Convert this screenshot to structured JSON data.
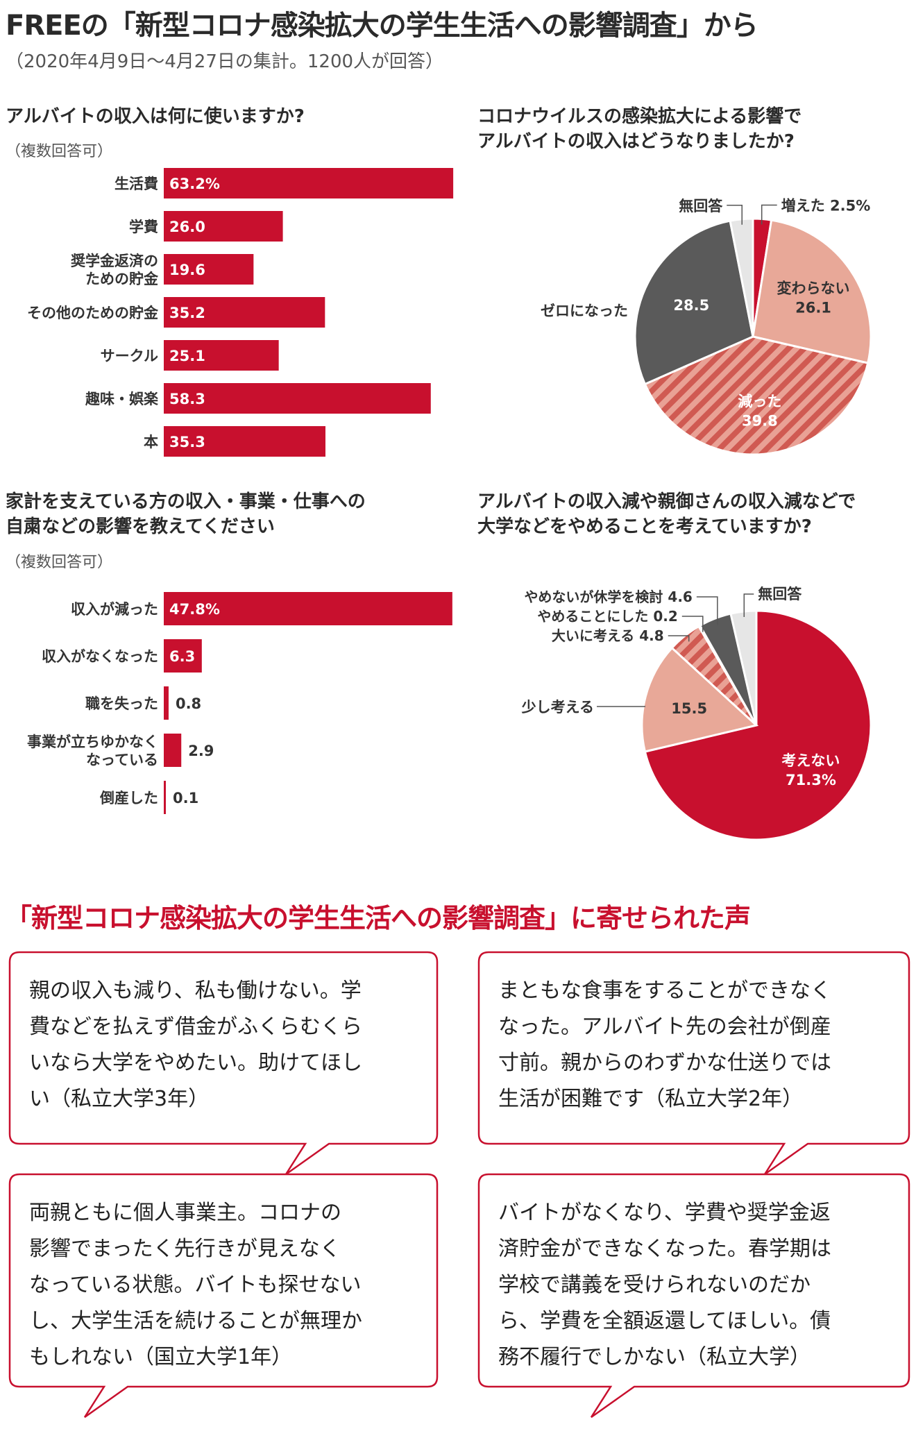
{
  "header": {
    "title": "FREEの「新型コロナ感染拡大の学生生活への影響調査」から",
    "subtitle": "（2020年4月9日〜4月27日の集計。1200人が回答）"
  },
  "colors": {
    "accent": "#c8102e",
    "salmon": "#e8a898",
    "dark": "#5a5a5a",
    "light": "#e6e6e6"
  },
  "chart_data": [
    {
      "type": "bar",
      "title": "アルバイトの収入は何に使いますか?",
      "note": "（複数回答可）",
      "unit": "%",
      "categories": [
        "生活費",
        "学費",
        "奨学金返済のための貯金",
        "その他のための貯金",
        "サークル",
        "趣味・娯楽",
        "本"
      ],
      "category_lines": [
        [
          "生活費"
        ],
        [
          "学費"
        ],
        [
          "奨学金返済の",
          "ための貯金"
        ],
        [
          "その他のための貯金"
        ],
        [
          "サークル"
        ],
        [
          "趣味・娯楽"
        ],
        [
          "本"
        ]
      ],
      "values": [
        63.2,
        26.0,
        19.6,
        35.2,
        25.1,
        58.3,
        35.3
      ],
      "labels": [
        "63.2%",
        "26.0",
        "19.6",
        "35.2",
        "25.1",
        "58.3",
        "35.3"
      ]
    },
    {
      "type": "pie",
      "title_lines": [
        "コロナウイルスの感染拡大による影響で",
        "アルバイトの収入はどうなりましたか?"
      ],
      "slices": [
        {
          "label": "増えた",
          "value": 2.5,
          "text": "2.5%"
        },
        {
          "label": "変わらない",
          "value": 26.1,
          "text": "26.1"
        },
        {
          "label": "減った",
          "value": 39.8,
          "text": "39.8"
        },
        {
          "label": "ゼロになった",
          "value": 28.5,
          "text": "28.5"
        },
        {
          "label": "無回答",
          "value": 3.1,
          "text": ""
        }
      ]
    },
    {
      "type": "bar",
      "title_lines": [
        "家計を支えている方の収入・事業・仕事への",
        "自粛などの影響を教えてください"
      ],
      "note": "（複数回答可）",
      "unit": "%",
      "categories": [
        "収入が減った",
        "収入がなくなった",
        "職を失った",
        "事業が立ちゆかくなっている",
        "倒産した"
      ],
      "category_lines": [
        [
          "収入が減った"
        ],
        [
          "収入がなくなった"
        ],
        [
          "職を失った"
        ],
        [
          "事業が立ちゆかなく",
          "なっている"
        ],
        [
          "倒産した"
        ]
      ],
      "values": [
        47.8,
        6.3,
        0.8,
        2.9,
        0.1
      ],
      "labels": [
        "47.8%",
        "6.3",
        "0.8",
        "2.9",
        "0.1"
      ]
    },
    {
      "type": "pie",
      "title_lines": [
        "アルバイトの収入減や親御さんの収入減などで",
        "大学などをやめることを考えていますか?"
      ],
      "slices": [
        {
          "label": "考えない",
          "value": 71.3,
          "text": "71.3%"
        },
        {
          "label": "少し考える",
          "value": 15.5,
          "text": "15.5"
        },
        {
          "label": "大いに考える",
          "value": 4.8,
          "text": "4.8"
        },
        {
          "label": "やめることにした",
          "value": 0.2,
          "text": "0.2"
        },
        {
          "label": "やめないが休学を検討",
          "value": 4.6,
          "text": "4.6"
        },
        {
          "label": "無回答",
          "value": 3.6,
          "text": ""
        }
      ]
    }
  ],
  "voices": {
    "title": "「新型コロナ感染拡大の学生生活への影響調査」に寄せられた声",
    "quotes": [
      [
        "親の収入も減り、私も働けない。学",
        "費などを払えず借金がふくらむくら",
        "いなら大学をやめたい。助けてほし",
        "い（私立大学3年）"
      ],
      [
        "まともな食事をすることができなく",
        "なった。アルバイト先の会社が倒産",
        "寸前。親からのわずかな仕送りでは",
        "生活が困難です（私立大学2年）"
      ],
      [
        "両親ともに個人事業主。コロナの",
        "影響でまったく先行きが見えなく",
        "なっている状態。バイトも探せない",
        "し、大学生活を続けることが無理か",
        "もしれない（国立大学1年）"
      ],
      [
        "バイトがなくなり、学費や奨学金返",
        "済貯金ができなくなった。春学期は",
        "学校で講義を受けられないのだか",
        "ら、学費を全額返還してほしい。債",
        "務不履行でしかない（私立大学）"
      ]
    ]
  }
}
